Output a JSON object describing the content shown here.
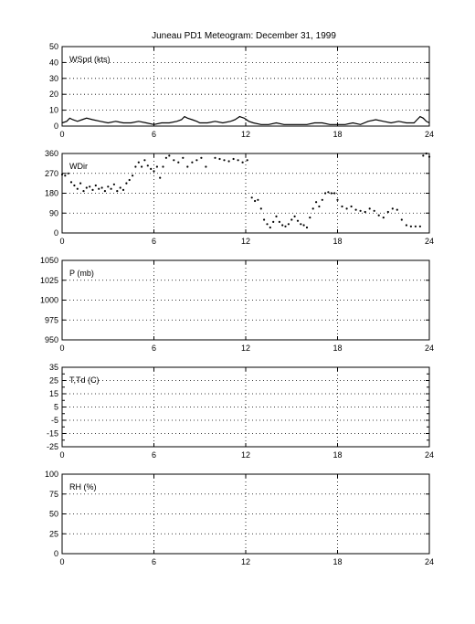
{
  "figure_title": "Juneau PD1 Meteogram:   December 31, 1999",
  "chart_data": [
    {
      "type": "line",
      "id": "wspd",
      "label": "WSpd (kts)",
      "xlim": [
        0,
        24
      ],
      "xticks": [
        0,
        6,
        12,
        18,
        24
      ],
      "ylim": [
        0,
        50
      ],
      "yticks": [
        0,
        10,
        20,
        30,
        40,
        50
      ],
      "grid": true,
      "series": [
        {
          "style": "line",
          "x": [
            0,
            0.3,
            0.5,
            0.7,
            1.0,
            1.3,
            1.6,
            2.0,
            2.5,
            3.0,
            3.5,
            4.0,
            4.5,
            5.0,
            5.5,
            6.0,
            6.5,
            7.0,
            7.5,
            7.8,
            8.0,
            8.2,
            8.5,
            8.8,
            9.0,
            9.5,
            10.0,
            10.5,
            11.0,
            11.3,
            11.6,
            11.9,
            12.2,
            12.5,
            13.0,
            13.5,
            14.0,
            14.5,
            15.0,
            15.5,
            16.0,
            16.5,
            17.0,
            17.5,
            18.0,
            18.5,
            19.0,
            19.5,
            20.0,
            20.5,
            21.0,
            21.5,
            22.0,
            22.5,
            23.0,
            23.2,
            23.4,
            23.6,
            23.8,
            24.0
          ],
          "y": [
            2,
            3,
            5,
            4,
            3,
            4,
            5,
            4,
            3,
            2,
            3,
            2,
            2,
            3,
            2,
            1,
            2,
            2,
            3,
            4,
            6,
            5,
            4,
            3,
            2,
            2,
            3,
            2,
            3,
            4,
            6,
            5,
            3,
            2,
            1,
            1,
            2,
            1,
            1,
            1,
            1,
            2,
            2,
            1,
            1,
            1,
            2,
            1,
            3,
            4,
            3,
            2,
            3,
            2,
            2,
            4,
            6,
            5,
            3,
            2
          ]
        }
      ]
    },
    {
      "type": "scatter",
      "id": "wdir",
      "label": "WDir",
      "xlim": [
        0,
        24
      ],
      "xticks": [
        0,
        6,
        12,
        18,
        24
      ],
      "ylim": [
        0,
        360
      ],
      "yticks": [
        0,
        90,
        180,
        270,
        360
      ],
      "grid": true,
      "series": [
        {
          "style": "dots",
          "x": [
            0.0,
            0.2,
            0.4,
            0.6,
            0.8,
            1.0,
            1.2,
            1.4,
            1.6,
            1.8,
            2.0,
            2.2,
            2.4,
            2.6,
            2.8,
            3.0,
            3.2,
            3.4,
            3.6,
            3.8,
            4.0,
            4.2,
            4.4,
            4.6,
            4.8,
            5.0,
            5.2,
            5.4,
            5.6,
            5.8,
            6.0,
            6.2,
            6.4,
            6.6,
            6.8,
            7.0,
            7.3,
            7.6,
            7.9,
            8.2,
            8.5,
            8.8,
            9.1,
            9.4,
            10.0,
            10.3,
            10.6,
            10.9,
            11.2,
            11.5,
            11.8,
            12.1,
            12.4,
            12.6,
            12.8,
            13.0,
            13.2,
            13.4,
            13.6,
            13.8,
            14.0,
            14.2,
            14.4,
            14.6,
            14.8,
            15.0,
            15.2,
            15.4,
            15.6,
            15.8,
            16.0,
            16.2,
            16.4,
            16.6,
            16.8,
            17.0,
            17.2,
            17.4,
            17.6,
            17.8,
            18.0,
            18.3,
            18.6,
            18.9,
            19.2,
            19.5,
            19.8,
            20.1,
            20.4,
            20.7,
            21.0,
            21.3,
            21.6,
            21.9,
            22.2,
            22.5,
            22.8,
            23.1,
            23.4,
            23.6,
            23.8,
            24.0
          ],
          "y": [
            265,
            260,
            270,
            230,
            215,
            200,
            225,
            190,
            205,
            210,
            195,
            215,
            200,
            205,
            190,
            210,
            200,
            220,
            190,
            205,
            195,
            225,
            240,
            260,
            300,
            320,
            300,
            330,
            305,
            290,
            280,
            300,
            250,
            300,
            340,
            350,
            330,
            320,
            340,
            300,
            320,
            330,
            340,
            300,
            340,
            335,
            330,
            325,
            335,
            330,
            320,
            330,
            160,
            145,
            150,
            110,
            60,
            40,
            25,
            50,
            75,
            50,
            35,
            30,
            40,
            60,
            75,
            55,
            40,
            35,
            25,
            70,
            110,
            140,
            120,
            150,
            180,
            185,
            180,
            180,
            150,
            120,
            110,
            120,
            105,
            100,
            95,
            110,
            100,
            80,
            70,
            95,
            110,
            105,
            60,
            35,
            30,
            30,
            30,
            350,
            360,
            345
          ]
        }
      ]
    },
    {
      "type": "line",
      "id": "pres",
      "label": "P (mb)",
      "xlim": [
        0,
        24
      ],
      "xticks": [
        0,
        6,
        12,
        18,
        24
      ],
      "ylim": [
        950,
        1050
      ],
      "yticks": [
        950,
        975,
        1000,
        1025,
        1050
      ],
      "grid": true,
      "series": []
    },
    {
      "type": "line",
      "id": "temp",
      "label": "T,Td (C)",
      "xlim": [
        0,
        24
      ],
      "xticks": [
        0,
        6,
        12,
        18,
        24
      ],
      "ylim": [
        -25,
        35
      ],
      "yticks": [
        -25,
        -15,
        -5,
        5,
        15,
        25,
        35
      ],
      "ytick_labels": [
        "-25",
        "-15",
        "-5",
        "5",
        "15",
        "25",
        "35"
      ],
      "minor_yticks": [
        -20,
        -10,
        0,
        10,
        20,
        30
      ],
      "grid": true,
      "series": []
    },
    {
      "type": "line",
      "id": "rh",
      "label": "RH (%)",
      "xlim": [
        0,
        24
      ],
      "xticks": [
        0,
        6,
        12,
        18,
        24
      ],
      "ylim": [
        0,
        100
      ],
      "yticks": [
        0,
        25,
        50,
        75,
        100
      ],
      "grid": true,
      "series": []
    }
  ]
}
